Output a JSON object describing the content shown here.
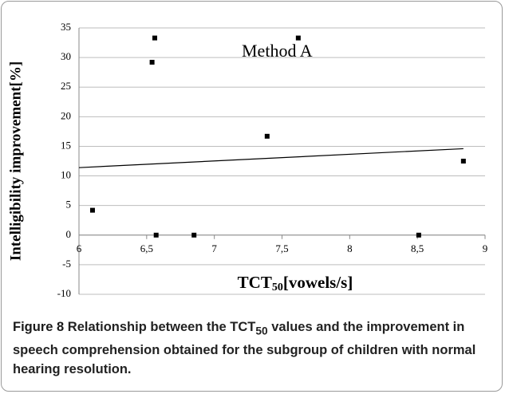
{
  "chart_data": {
    "type": "scatter",
    "annotation": "Method A",
    "ylabel": "Intelligibility improvement[%]",
    "xlabel": {
      "main": "TCT",
      "sub": "50",
      "rest": "[vowels/s]"
    },
    "x": [
      6.1,
      6.54,
      6.56,
      6.57,
      6.85,
      7.39,
      7.62,
      8.51,
      8.84
    ],
    "values": [
      4.2,
      29.2,
      33.3,
      0,
      0,
      16.7,
      33.3,
      0,
      12.5
    ],
    "color": "#000000",
    "trendline": {
      "x": [
        6,
        8.84
      ],
      "y": [
        11.4,
        14.6
      ]
    },
    "xlim": [
      6,
      9
    ],
    "xticks": [
      6,
      {
        "value": 6.5,
        "label": "6,5"
      },
      7,
      {
        "value": 7.5,
        "label": "7,5"
      },
      8,
      {
        "value": 8.5,
        "label": "8,5"
      },
      9
    ],
    "ylim": [
      -10,
      35
    ],
    "yticks": [
      -10,
      -5,
      0,
      5,
      10,
      15,
      20,
      25,
      30,
      35
    ],
    "grid": true
  },
  "caption": {
    "label": "Figure 8",
    "parts": [
      " Relationship between the TCT",
      "50",
      " values and the improvement in speech comprehension obtained for the subgroup of children with normal hearing resolution."
    ]
  }
}
